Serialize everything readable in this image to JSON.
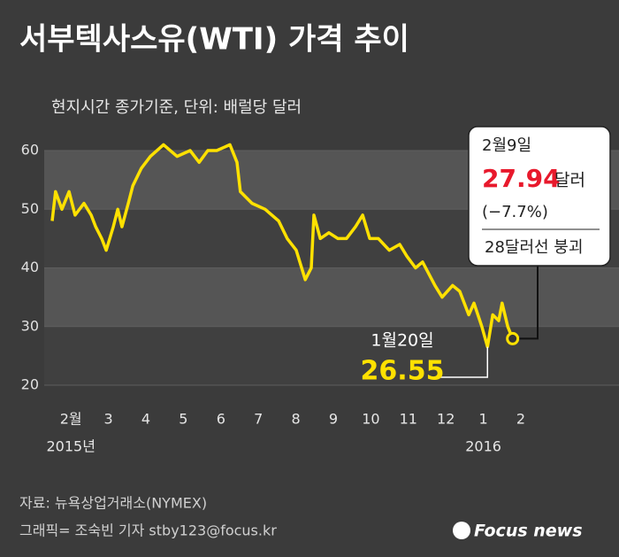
{
  "chart_data": {
    "type": "line",
    "title": "서부텍사스유(WTI) 가격 추이",
    "subtitle": "현지시간 종가기준, 단위: 배럴당 달러",
    "x": [
      0,
      0.09,
      0.26,
      0.45,
      0.61,
      0.85,
      1.04,
      1.16,
      1.32,
      1.44,
      1.63,
      1.75,
      1.86,
      2.03,
      2.15,
      2.38,
      2.62,
      2.97,
      3.33,
      3.68,
      3.92,
      4.15,
      4.39,
      4.74,
      4.93,
      5.02,
      5.33,
      5.68,
      6.04,
      6.27,
      6.51,
      6.75,
      6.91,
      6.98,
      7.15,
      7.38,
      7.62,
      7.85,
      8.09,
      8.28,
      8.47,
      8.7,
      8.99,
      9.27,
      9.46,
      9.69,
      9.88,
      10.21,
      10.4,
      10.68,
      10.87,
      11.11,
      11.25,
      11.46,
      11.61,
      11.75,
      11.91,
      12.0,
      12.15,
      12.28
    ],
    "values": [
      48,
      53,
      50,
      53,
      49,
      51,
      49,
      47,
      45,
      43,
      47,
      50,
      47,
      51,
      54,
      57,
      59,
      61,
      59,
      60,
      58,
      60,
      60,
      61,
      58,
      53,
      51,
      50,
      48,
      45,
      43,
      38,
      40,
      49,
      45,
      46,
      45,
      45,
      47,
      49,
      45,
      45,
      43,
      44,
      42,
      40,
      41,
      37,
      35,
      37,
      36,
      32,
      34,
      30,
      26.55,
      32,
      31,
      34,
      30,
      27.94
    ],
    "color": "#ffe100",
    "xlim": [
      0,
      13
    ],
    "xticks": [
      {
        "value": 0.5,
        "label": "2월"
      },
      {
        "value": 1.5,
        "label": "3"
      },
      {
        "value": 2.5,
        "label": "4"
      },
      {
        "value": 3.5,
        "label": "5"
      },
      {
        "value": 4.5,
        "label": "6"
      },
      {
        "value": 5.5,
        "label": "7"
      },
      {
        "value": 6.5,
        "label": "8"
      },
      {
        "value": 7.5,
        "label": "9"
      },
      {
        "value": 8.5,
        "label": "10"
      },
      {
        "value": 9.5,
        "label": "11"
      },
      {
        "value": 10.5,
        "label": "12"
      },
      {
        "value": 11.5,
        "label": "1"
      },
      {
        "value": 12.5,
        "label": "2"
      }
    ],
    "year_labels": [
      {
        "value": 0.5,
        "label": "2015년"
      },
      {
        "value": 11.5,
        "label": "2016"
      }
    ],
    "ylim": [
      20,
      60
    ],
    "yticks": [
      20,
      30,
      40,
      50,
      60
    ],
    "annotations": {
      "low": {
        "date": "1월20일"
      },
      "last": {
        "date": "2월9일",
        "unit": "달러",
        "change": "(−7.7%)",
        "note": "28달러선 붕괴"
      }
    },
    "source": "자료: 뉴욕상업거래소(NYMEX)",
    "credit": "그래픽= 조숙빈 기자 stby123@focus.kr",
    "logo": "Focus news"
  }
}
